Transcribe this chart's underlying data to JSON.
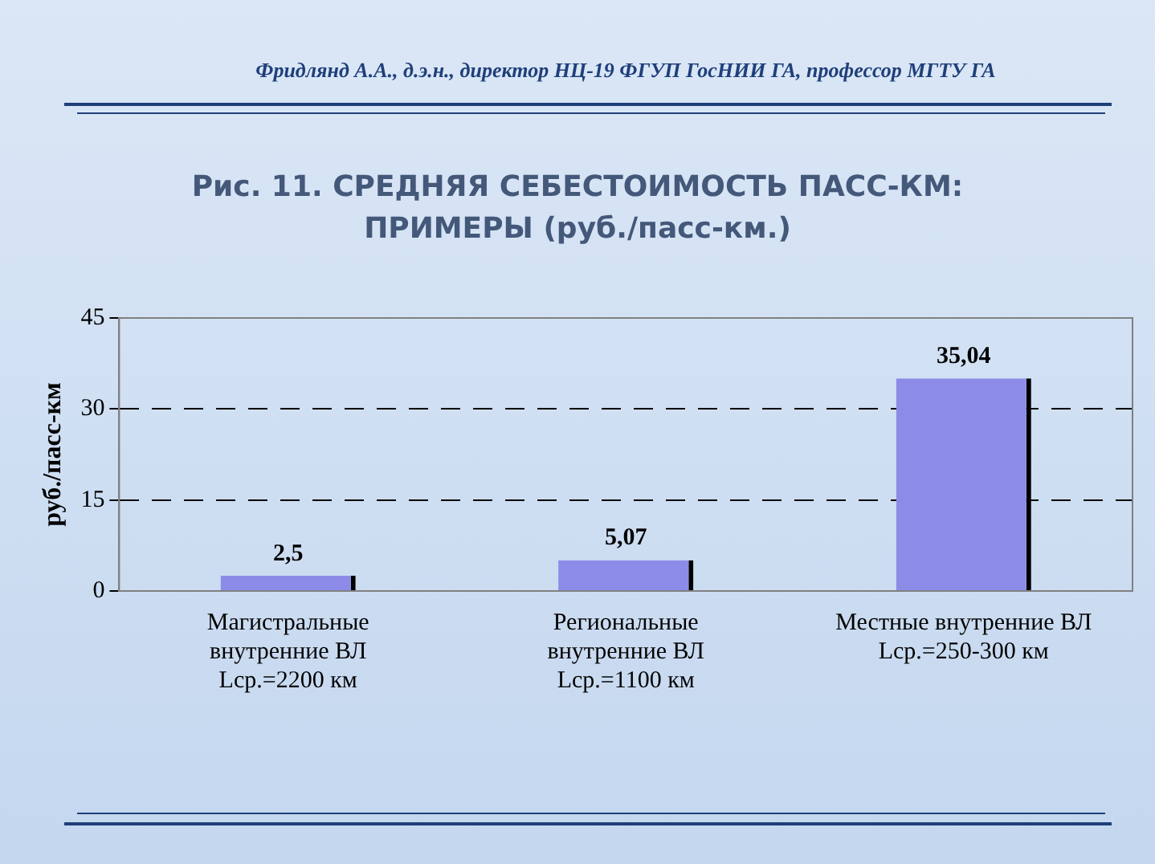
{
  "chart_data": {
    "type": "bar",
    "title": "Рис. 11. СРЕДНЯЯ СЕБЕСТОИМОСТЬ ПАСС-КМ:\nПРИМЕРЫ (руб./пасс-км.)",
    "annotations": [
      "Фридлянд А.А., д.э.н., директор  НЦ-19 ФГУП ГосНИИ ГА, профессор МГТУ ГА"
    ],
    "ylabel": "руб./пасс-км",
    "categories": [
      "Магистральные\nвнутренние ВЛ\nLср.=2200 км",
      "Региональные\nвнутренние ВЛ\nLср.=1100 км",
      "Местные внутренние ВЛ\nLср.=250-300 км"
    ],
    "values": [
      2.5,
      5.07,
      35.04
    ],
    "value_labels": [
      "2,5",
      "5,07",
      "35,04"
    ],
    "color": "#8c8ce8",
    "ylim": [
      0,
      45
    ],
    "yticks": [
      0,
      15,
      30,
      45
    ],
    "grid": "y",
    "line_style": "dashed",
    "legend": false
  }
}
